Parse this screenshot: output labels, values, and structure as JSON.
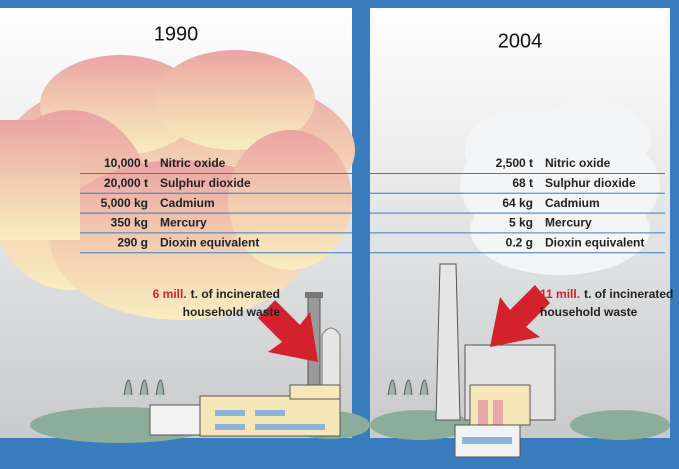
{
  "panels": [
    {
      "year": "1990",
      "rows": [
        {
          "amount": "10,000 t",
          "substance": "Nitric oxide"
        },
        {
          "amount": "20,000 t",
          "substance": "Sulphur dioxide"
        },
        {
          "amount": "5,000 kg",
          "substance": "Cadmium"
        },
        {
          "amount": "350 kg",
          "substance": "Mercury"
        },
        {
          "amount": "290 g",
          "substance": "Dioxin equivalent"
        }
      ],
      "note": {
        "highlight": "6 mill.",
        "text": "t. of incinerated",
        "line2": "household waste"
      }
    },
    {
      "year": "2004",
      "rows": [
        {
          "amount": "2,500 t",
          "substance": "Nitric oxide"
        },
        {
          "amount": "68 t",
          "substance": "Sulphur dioxide"
        },
        {
          "amount": "64 kg",
          "substance": "Cadmium"
        },
        {
          "amount": "5 kg",
          "substance": "Mercury"
        },
        {
          "amount": "0.2 g",
          "substance": "Dioxin equivalent"
        }
      ],
      "note": {
        "highlight": "11 mill.",
        "text": "t. of incinerated",
        "line2": "household waste"
      }
    }
  ]
}
